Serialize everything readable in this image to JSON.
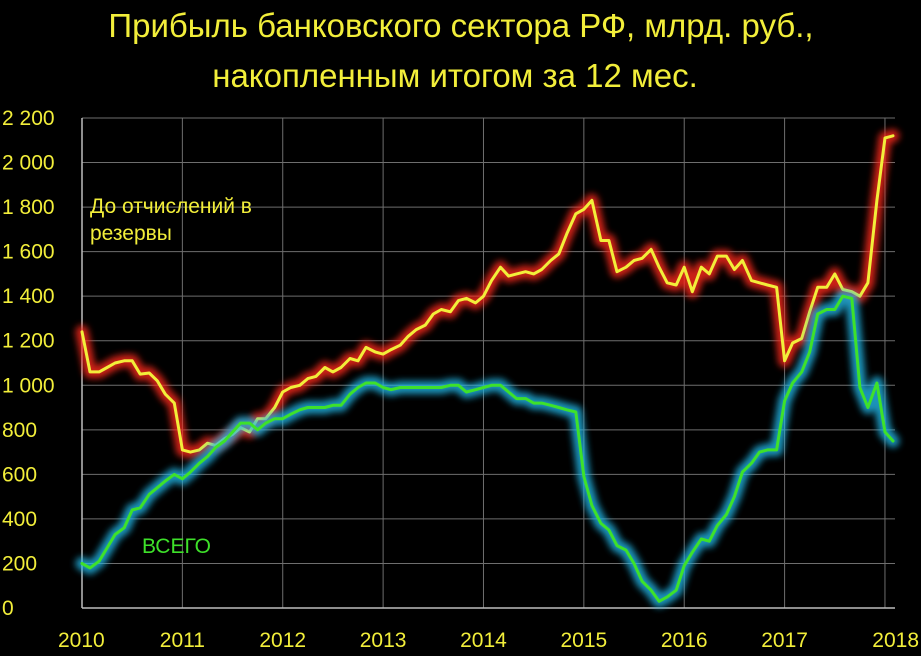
{
  "chart_data": {
    "type": "line",
    "title": "Прибыль банковского сектора РФ, млрд. руб.,",
    "subtitle": "накопленным итогом за 12 мес.",
    "xlabel": "",
    "ylabel": "",
    "xlim": [
      2010,
      2018.1
    ],
    "ylim": [
      0,
      2200
    ],
    "x_ticks": [
      "2010",
      "2011",
      "2012",
      "2013",
      "2014",
      "2015",
      "2016",
      "2017",
      "2018"
    ],
    "y_ticks": [
      "0",
      "200",
      "400",
      "600",
      "800",
      "1 000",
      "1 200",
      "1 400",
      "1 600",
      "1 800",
      "2 000",
      "2 200"
    ],
    "grid": true,
    "colors": {
      "background": "#000000",
      "text": "#f2ee3a",
      "line_before_reserves": "#f2ee3a",
      "glow_before_reserves": "#ff2a1a",
      "line_total": "#3ee12a",
      "glow_total": "#22b8e8"
    },
    "annotations": [
      {
        "text": "До отчислений в",
        "series": 0
      },
      {
        "text": "резервы",
        "series": 0
      },
      {
        "text": "ВСЕГО",
        "series": 1
      }
    ],
    "series": [
      {
        "points": [
          [
            2010.0,
            1240
          ],
          [
            2010.08,
            1060
          ],
          [
            2010.17,
            1060
          ],
          [
            2010.25,
            1080
          ],
          [
            2010.33,
            1100
          ],
          [
            2010.42,
            1110
          ],
          [
            2010.5,
            1110
          ],
          [
            2010.58,
            1050
          ],
          [
            2010.67,
            1055
          ],
          [
            2010.75,
            1020
          ],
          [
            2010.83,
            960
          ],
          [
            2010.92,
            920
          ],
          [
            2011.0,
            710
          ],
          [
            2011.08,
            700
          ],
          [
            2011.17,
            710
          ],
          [
            2011.25,
            740
          ],
          [
            2011.33,
            730
          ],
          [
            2011.42,
            760
          ],
          [
            2011.5,
            780
          ],
          [
            2011.58,
            810
          ],
          [
            2011.67,
            790
          ],
          [
            2011.75,
            850
          ],
          [
            2011.83,
            850
          ],
          [
            2011.92,
            900
          ],
          [
            2012.0,
            970
          ],
          [
            2012.08,
            990
          ],
          [
            2012.17,
            1000
          ],
          [
            2012.25,
            1030
          ],
          [
            2012.33,
            1040
          ],
          [
            2012.42,
            1080
          ],
          [
            2012.5,
            1060
          ],
          [
            2012.58,
            1080
          ],
          [
            2012.67,
            1120
          ],
          [
            2012.75,
            1110
          ],
          [
            2012.83,
            1170
          ],
          [
            2012.92,
            1150
          ],
          [
            2013.0,
            1140
          ],
          [
            2013.08,
            1160
          ],
          [
            2013.17,
            1180
          ],
          [
            2013.25,
            1220
          ],
          [
            2013.33,
            1250
          ],
          [
            2013.42,
            1270
          ],
          [
            2013.5,
            1320
          ],
          [
            2013.58,
            1340
          ],
          [
            2013.67,
            1330
          ],
          [
            2013.75,
            1380
          ],
          [
            2013.83,
            1390
          ],
          [
            2013.92,
            1370
          ],
          [
            2014.0,
            1400
          ],
          [
            2014.08,
            1470
          ],
          [
            2014.17,
            1530
          ],
          [
            2014.25,
            1490
          ],
          [
            2014.33,
            1500
          ],
          [
            2014.42,
            1510
          ],
          [
            2014.5,
            1500
          ],
          [
            2014.58,
            1520
          ],
          [
            2014.67,
            1560
          ],
          [
            2014.75,
            1590
          ],
          [
            2014.83,
            1680
          ],
          [
            2014.92,
            1770
          ],
          [
            2015.0,
            1790
          ],
          [
            2015.08,
            1830
          ],
          [
            2015.17,
            1650
          ],
          [
            2015.25,
            1650
          ],
          [
            2015.33,
            1510
          ],
          [
            2015.42,
            1530
          ],
          [
            2015.5,
            1560
          ],
          [
            2015.58,
            1570
          ],
          [
            2015.67,
            1610
          ],
          [
            2015.75,
            1530
          ],
          [
            2015.83,
            1460
          ],
          [
            2015.92,
            1450
          ],
          [
            2016.0,
            1530
          ],
          [
            2016.08,
            1420
          ],
          [
            2016.17,
            1530
          ],
          [
            2016.25,
            1500
          ],
          [
            2016.33,
            1580
          ],
          [
            2016.42,
            1580
          ],
          [
            2016.5,
            1520
          ],
          [
            2016.58,
            1560
          ],
          [
            2016.67,
            1470
          ],
          [
            2016.75,
            1460
          ],
          [
            2016.83,
            1450
          ],
          [
            2016.92,
            1440
          ],
          [
            2017.0,
            1110
          ],
          [
            2017.08,
            1190
          ],
          [
            2017.17,
            1210
          ],
          [
            2017.25,
            1330
          ],
          [
            2017.33,
            1440
          ],
          [
            2017.42,
            1440
          ],
          [
            2017.5,
            1500
          ],
          [
            2017.58,
            1430
          ],
          [
            2017.67,
            1420
          ],
          [
            2017.75,
            1400
          ],
          [
            2017.83,
            1460
          ],
          [
            2017.92,
            1830
          ],
          [
            2018.0,
            2110
          ],
          [
            2018.08,
            2120
          ]
        ]
      },
      {
        "points": [
          [
            2010.0,
            200
          ],
          [
            2010.08,
            180
          ],
          [
            2010.17,
            210
          ],
          [
            2010.25,
            270
          ],
          [
            2010.33,
            330
          ],
          [
            2010.42,
            360
          ],
          [
            2010.5,
            440
          ],
          [
            2010.58,
            450
          ],
          [
            2010.67,
            510
          ],
          [
            2010.75,
            540
          ],
          [
            2010.83,
            570
          ],
          [
            2010.92,
            600
          ],
          [
            2011.0,
            580
          ],
          [
            2011.08,
            610
          ],
          [
            2011.17,
            650
          ],
          [
            2011.25,
            680
          ],
          [
            2011.33,
            720
          ],
          [
            2011.42,
            750
          ],
          [
            2011.5,
            790
          ],
          [
            2011.58,
            830
          ],
          [
            2011.67,
            830
          ],
          [
            2011.75,
            800
          ],
          [
            2011.83,
            830
          ],
          [
            2011.92,
            850
          ],
          [
            2012.0,
            850
          ],
          [
            2012.08,
            870
          ],
          [
            2012.17,
            890
          ],
          [
            2012.25,
            900
          ],
          [
            2012.33,
            900
          ],
          [
            2012.42,
            900
          ],
          [
            2012.5,
            910
          ],
          [
            2012.58,
            910
          ],
          [
            2012.67,
            960
          ],
          [
            2012.75,
            990
          ],
          [
            2012.83,
            1010
          ],
          [
            2012.92,
            1010
          ],
          [
            2013.0,
            990
          ],
          [
            2013.08,
            980
          ],
          [
            2013.17,
            990
          ],
          [
            2013.25,
            990
          ],
          [
            2013.33,
            990
          ],
          [
            2013.42,
            990
          ],
          [
            2013.5,
            990
          ],
          [
            2013.58,
            990
          ],
          [
            2013.67,
            1000
          ],
          [
            2013.75,
            1000
          ],
          [
            2013.83,
            970
          ],
          [
            2013.92,
            980
          ],
          [
            2014.0,
            990
          ],
          [
            2014.08,
            1000
          ],
          [
            2014.17,
            1000
          ],
          [
            2014.25,
            970
          ],
          [
            2014.33,
            940
          ],
          [
            2014.42,
            940
          ],
          [
            2014.5,
            920
          ],
          [
            2014.58,
            920
          ],
          [
            2014.67,
            910
          ],
          [
            2014.75,
            900
          ],
          [
            2014.83,
            890
          ],
          [
            2014.92,
            880
          ],
          [
            2015.0,
            590
          ],
          [
            2015.08,
            460
          ],
          [
            2015.17,
            380
          ],
          [
            2015.25,
            350
          ],
          [
            2015.33,
            280
          ],
          [
            2015.42,
            260
          ],
          [
            2015.5,
            200
          ],
          [
            2015.58,
            120
          ],
          [
            2015.67,
            80
          ],
          [
            2015.75,
            30
          ],
          [
            2015.83,
            50
          ],
          [
            2015.92,
            80
          ],
          [
            2016.0,
            190
          ],
          [
            2016.08,
            250
          ],
          [
            2016.17,
            310
          ],
          [
            2016.25,
            300
          ],
          [
            2016.33,
            370
          ],
          [
            2016.42,
            420
          ],
          [
            2016.5,
            500
          ],
          [
            2016.58,
            610
          ],
          [
            2016.67,
            650
          ],
          [
            2016.75,
            700
          ],
          [
            2016.83,
            710
          ],
          [
            2016.92,
            710
          ],
          [
            2017.0,
            930
          ],
          [
            2017.08,
            1010
          ],
          [
            2017.17,
            1060
          ],
          [
            2017.25,
            1150
          ],
          [
            2017.33,
            1320
          ],
          [
            2017.42,
            1340
          ],
          [
            2017.5,
            1340
          ],
          [
            2017.58,
            1400
          ],
          [
            2017.67,
            1390
          ],
          [
            2017.75,
            990
          ],
          [
            2017.83,
            900
          ],
          [
            2017.92,
            1010
          ],
          [
            2018.0,
            790
          ],
          [
            2018.08,
            750
          ]
        ]
      }
    ]
  }
}
